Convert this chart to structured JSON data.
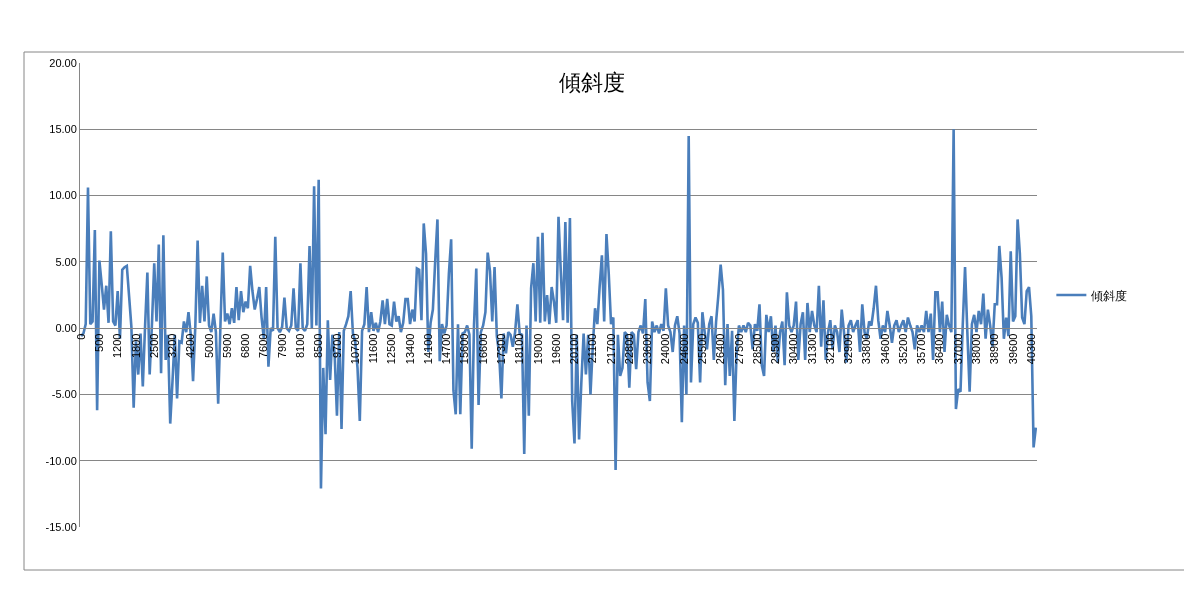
{
  "chart_data": {
    "type": "line",
    "title": "傾斜度",
    "categories": [
      "0",
      null,
      null,
      null,
      null,
      null,
      null,
      null,
      "500",
      null,
      null,
      null,
      null,
      null,
      null,
      null,
      "1200",
      null,
      null,
      null,
      null,
      null,
      null,
      null,
      "1800",
      null,
      null,
      null,
      null,
      null,
      null,
      null,
      "2500",
      null,
      null,
      null,
      null,
      null,
      null,
      null,
      "3200",
      null,
      null,
      null,
      null,
      null,
      null,
      null,
      "4200",
      null,
      null,
      null,
      null,
      null,
      null,
      null,
      "5000",
      null,
      null,
      null,
      null,
      null,
      null,
      null,
      "5900",
      null,
      null,
      null,
      null,
      null,
      null,
      null,
      "6800",
      null,
      null,
      null,
      null,
      null,
      null,
      null,
      "7600",
      null,
      null,
      null,
      null,
      null,
      null,
      null,
      "7900",
      null,
      null,
      null,
      null,
      null,
      null,
      null,
      "8100",
      null,
      null,
      null,
      null,
      null,
      null,
      null,
      "8500",
      null,
      null,
      null,
      null,
      null,
      null,
      null,
      "9700",
      null,
      null,
      null,
      null,
      null,
      null,
      null,
      "10700",
      null,
      null,
      null,
      null,
      null,
      null,
      null,
      "11600",
      null,
      null,
      null,
      null,
      null,
      null,
      null,
      "12500",
      null,
      null,
      null,
      null,
      null,
      null,
      null,
      "13400",
      null,
      null,
      null,
      null,
      null,
      null,
      null,
      "14100",
      null,
      null,
      null,
      null,
      null,
      null,
      null,
      "14700",
      null,
      null,
      null,
      null,
      null,
      null,
      null,
      "15600",
      null,
      null,
      null,
      null,
      null,
      null,
      null,
      "16600",
      null,
      null,
      null,
      null,
      null,
      null,
      null,
      "17300",
      null,
      null,
      null,
      null,
      null,
      null,
      null,
      "18100",
      null,
      null,
      null,
      null,
      null,
      null,
      null,
      "19000",
      null,
      null,
      null,
      null,
      null,
      null,
      null,
      "19600",
      null,
      null,
      null,
      null,
      null,
      null,
      null,
      "20100",
      null,
      null,
      null,
      null,
      null,
      null,
      null,
      "21100",
      null,
      null,
      null,
      null,
      null,
      null,
      null,
      "21700",
      null,
      null,
      null,
      null,
      null,
      null,
      null,
      "22800",
      null,
      null,
      null,
      null,
      null,
      null,
      null,
      "23600",
      null,
      null,
      null,
      null,
      null,
      null,
      null,
      "24000",
      null,
      null,
      null,
      null,
      null,
      null,
      null,
      "24600",
      null,
      null,
      null,
      null,
      null,
      null,
      null,
      "25500",
      null,
      null,
      null,
      null,
      null,
      null,
      null,
      "26400",
      null,
      null,
      null,
      null,
      null,
      null,
      null,
      "27500",
      null,
      null,
      null,
      null,
      null,
      null,
      null,
      "28500",
      null,
      null,
      null,
      null,
      null,
      null,
      null,
      "29500",
      null,
      null,
      null,
      null,
      null,
      null,
      null,
      "30400",
      null,
      null,
      null,
      null,
      null,
      null,
      null,
      "31300",
      null,
      null,
      null,
      null,
      null,
      null,
      null,
      "32100",
      null,
      null,
      null,
      null,
      null,
      null,
      null,
      "32900",
      null,
      null,
      null,
      null,
      null,
      null,
      null,
      "33800",
      null,
      null,
      null,
      null,
      null,
      null,
      null,
      "34600",
      null,
      null,
      null,
      null,
      null,
      null,
      null,
      "35200",
      null,
      null,
      null,
      null,
      null,
      null,
      null,
      "35700",
      null,
      null,
      null,
      null,
      null,
      null,
      null,
      "36400",
      null,
      null,
      null,
      null,
      null,
      null,
      null,
      "37000",
      null,
      null,
      null,
      null,
      null,
      null,
      null,
      "38000",
      null,
      null,
      null,
      null,
      null,
      null,
      null,
      "38900",
      null,
      null,
      null,
      null,
      null,
      null,
      null,
      "39600",
      null,
      null,
      null,
      null,
      null,
      null,
      null,
      "40300",
      null,
      null
    ],
    "series": [
      {
        "name": "傾斜度",
        "color": "#4a7ebb",
        "values": [
          -0.6,
          -0.4,
          0.3,
          10.6,
          0.3,
          0.5,
          7.4,
          -6.2,
          5.1,
          3.3,
          1.4,
          3.2,
          0.4,
          7.3,
          0.5,
          0.2,
          2.8,
          -0.8,
          4.4,
          4.6,
          4.7,
          2.4,
          0.1,
          -6.0,
          -1.0,
          -3.5,
          -0.4,
          -4.4,
          0.2,
          4.2,
          -3.5,
          0.3,
          4.9,
          0.5,
          6.3,
          -3.4,
          7.0,
          -2.4,
          -0.5,
          -7.2,
          -4.0,
          -0.5,
          -5.3,
          -1.0,
          -1.1,
          0.5,
          -0.3,
          1.2,
          -0.5,
          -4.0,
          0.2,
          6.6,
          0.4,
          3.2,
          0.5,
          3.9,
          0.2,
          -0.3,
          1.1,
          -0.3,
          -5.7,
          0.3,
          5.7,
          0.5,
          1.1,
          0.3,
          1.5,
          0.4,
          3.1,
          0.6,
          2.8,
          1.2,
          2.0,
          1.5,
          4.7,
          2.8,
          1.4,
          2.2,
          3.1,
          0.8,
          -0.8,
          3.1,
          -2.9,
          0.0,
          -0.2,
          6.9,
          0.0,
          -0.3,
          0.1,
          2.3,
          0.0,
          -0.2,
          0.2,
          3.0,
          0.0,
          -0.2,
          4.9,
          0.0,
          -0.2,
          0.3,
          6.2,
          0.0,
          10.7,
          0.2,
          11.2,
          -12.1,
          -3.0,
          -8.0,
          0.6,
          -3.9,
          -0.5,
          -2.0,
          -6.6,
          -0.3,
          -7.6,
          -0.2,
          0.3,
          0.9,
          2.8,
          -0.4,
          -1.0,
          -3.0,
          -7.0,
          -0.2,
          0.3,
          3.1,
          -0.3,
          1.2,
          -0.2,
          0.4,
          -0.3,
          0.5,
          2.1,
          0.3,
          2.2,
          0.3,
          0.2,
          2.0,
          0.5,
          0.9,
          -0.3,
          0.4,
          2.2,
          2.2,
          0.3,
          1.4,
          0.5,
          4.5,
          4.4,
          0.6,
          7.9,
          5.6,
          -1.8,
          0.4,
          1.4,
          5.0,
          8.2,
          -2.5,
          0.3,
          -0.4,
          0.2,
          4.1,
          6.7,
          -4.7,
          -6.5,
          0.3,
          -6.5,
          -0.4,
          -0.3,
          0.2,
          -0.5,
          -9.1,
          0.2,
          4.5,
          -5.8,
          -0.3,
          0.2,
          1.2,
          5.7,
          4.3,
          0.5,
          4.6,
          -0.6,
          -1.9,
          -5.3,
          -0.4,
          -1.9,
          -0.3,
          -0.5,
          -1.4,
          -0.3,
          1.8,
          -0.4,
          -0.5,
          -9.5,
          0.2,
          -6.6,
          3.0,
          4.9,
          0.5,
          6.9,
          0.4,
          7.2,
          0.5,
          2.5,
          0.3,
          3.1,
          2.0,
          0.4,
          8.4,
          4.3,
          0.6,
          8.0,
          0.4,
          8.3,
          -5.5,
          -8.7,
          -0.5,
          -8.4,
          -4.1,
          -0.4,
          -3.5,
          -0.5,
          -5.0,
          -1.4,
          1.5,
          0.3,
          3.1,
          5.5,
          0.5,
          7.1,
          4.1,
          0.3,
          0.8,
          -10.7,
          -0.5,
          -3.6,
          -3.0,
          -0.3,
          -0.5,
          -4.5,
          -0.3,
          -0.5,
          -3.1,
          -0.3,
          0.2,
          -0.4,
          2.2,
          -4.1,
          -5.5,
          0.5,
          -0.3,
          0.2,
          -0.4,
          0.3,
          -0.2,
          3.0,
          0.2,
          -0.3,
          -1.8,
          0.2,
          0.9,
          -0.4,
          -7.1,
          0.2,
          -5.0,
          14.5,
          -4.1,
          0.3,
          0.8,
          0.4,
          -4.1,
          1.2,
          -0.3,
          -1.6,
          0.3,
          0.9,
          -2.4,
          0.5,
          2.5,
          4.8,
          2.9,
          -4.3,
          0.3,
          -3.6,
          -0.2,
          -7.0,
          -1.8,
          0.2,
          -0.3,
          0.2,
          -0.3,
          0.4,
          0.2,
          -1.6,
          0.3,
          -0.2,
          1.8,
          -2.8,
          -3.6,
          1.0,
          -0.3,
          0.9,
          -1.8,
          0.2,
          -2.6,
          -0.3,
          0.5,
          -2.8,
          2.7,
          0.2,
          -0.3,
          0.2,
          2.0,
          -2.4,
          0.3,
          1.2,
          -2.4,
          1.9,
          -0.3,
          1.3,
          0.2,
          -0.3,
          3.2,
          -1.4,
          2.1,
          -2.4,
          -0.3,
          0.6,
          -1.6,
          0.2,
          -0.3,
          -1.8,
          1.4,
          -0.3,
          -2.6,
          0.2,
          0.6,
          -0.3,
          0.2,
          0.6,
          -1.8,
          1.8,
          -0.3,
          -0.8,
          0.5,
          0.2,
          1.5,
          3.2,
          0.6,
          -0.8,
          0.2,
          -0.3,
          1.3,
          0.2,
          -1.1,
          0.2,
          0.6,
          -0.3,
          0.2,
          0.6,
          -0.3,
          0.8,
          0.2,
          -0.3,
          -1.6,
          0.2,
          -0.3,
          0.2,
          -0.3,
          1.3,
          -0.3,
          1.1,
          -2.4,
          2.7,
          2.7,
          -0.3,
          2.0,
          -1.8,
          1.0,
          0.2,
          -0.3,
          15.0,
          -6.1,
          -4.6,
          -4.8,
          0.3,
          4.6,
          -0.3,
          -4.8,
          0.3,
          1.0,
          -0.3,
          1.3,
          0.3,
          2.6,
          -0.8,
          1.4,
          0.2,
          -1.4,
          1.8,
          1.8,
          6.2,
          3.8,
          -0.8,
          0.8,
          -0.6,
          5.8,
          0.5,
          0.9,
          8.2,
          5.6,
          0.8,
          0.3,
          2.8,
          3.1,
          0.9,
          -9.0,
          -7.5
        ]
      }
    ],
    "ylim": [
      -15,
      20
    ],
    "yticks": [
      {
        "value": -15,
        "label": "-15.00"
      },
      {
        "value": -10,
        "label": "-10.00"
      },
      {
        "value": -5,
        "label": "-5.00"
      },
      {
        "value": 0,
        "label": "0.00"
      },
      {
        "value": 5,
        "label": "5.00"
      },
      {
        "value": 10,
        "label": "10.00"
      },
      {
        "value": 15,
        "label": "15.00"
      },
      {
        "value": 20,
        "label": "20.00"
      }
    ],
    "grid": "y",
    "legend": "right"
  }
}
